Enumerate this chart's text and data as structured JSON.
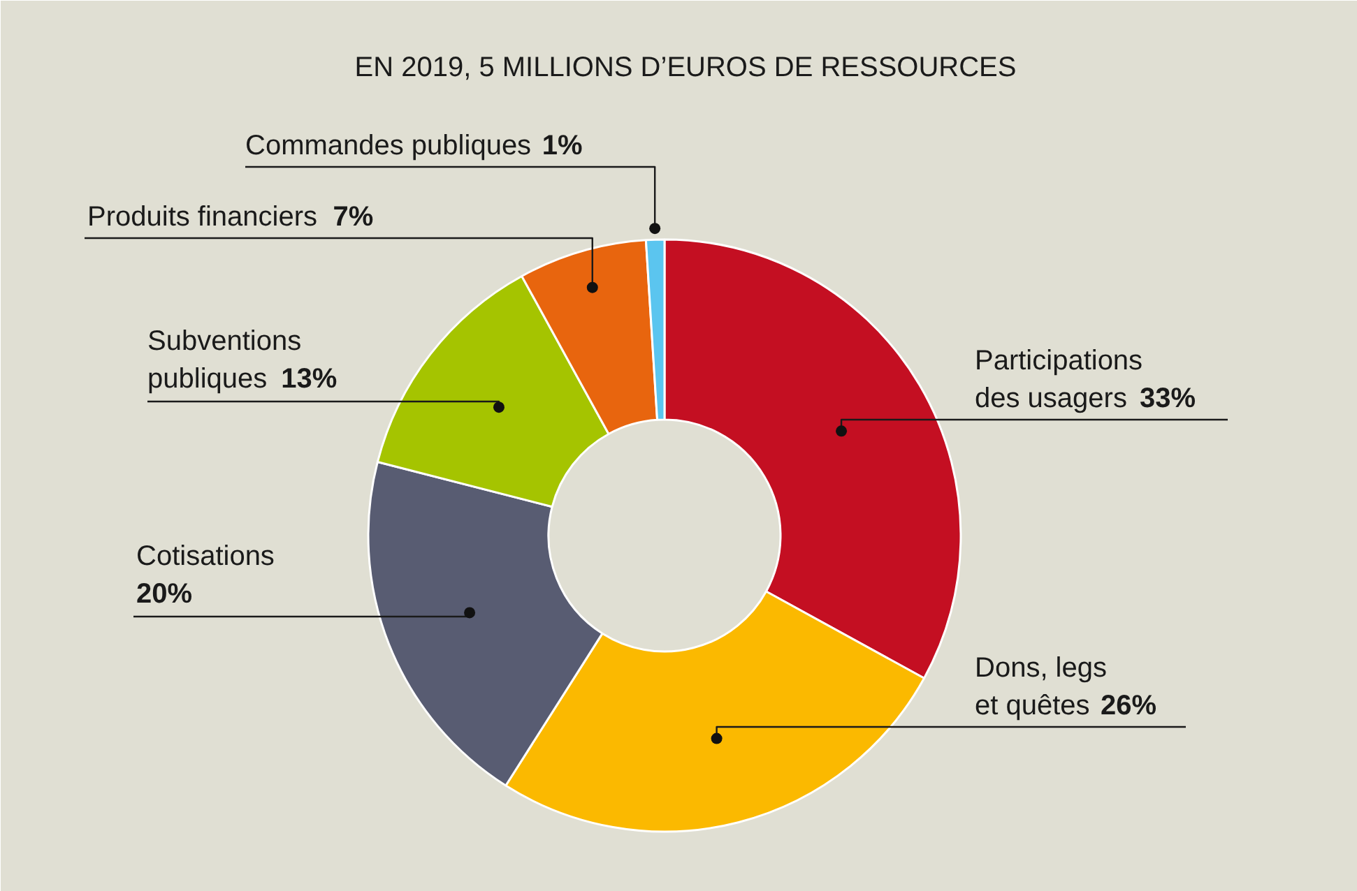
{
  "chart_data": {
    "type": "donut",
    "title": "EN 2019, 5 MILLIONS D’EUROS DE RESSOURCES",
    "categories": [
      "Participations des usagers",
      "Dons, legs et quêtes",
      "Cotisations",
      "Subventions publiques",
      "Produits financiers",
      "Commandes publiques"
    ],
    "values": [
      33,
      26,
      20,
      13,
      7,
      1
    ],
    "colors": [
      "#c40f22",
      "#fbb900",
      "#585c72",
      "#a5c400",
      "#e8650e",
      "#5bc5ef"
    ],
    "value_labels": [
      "33%",
      "26%",
      "20%",
      "13%",
      "7%",
      "1%"
    ]
  }
}
